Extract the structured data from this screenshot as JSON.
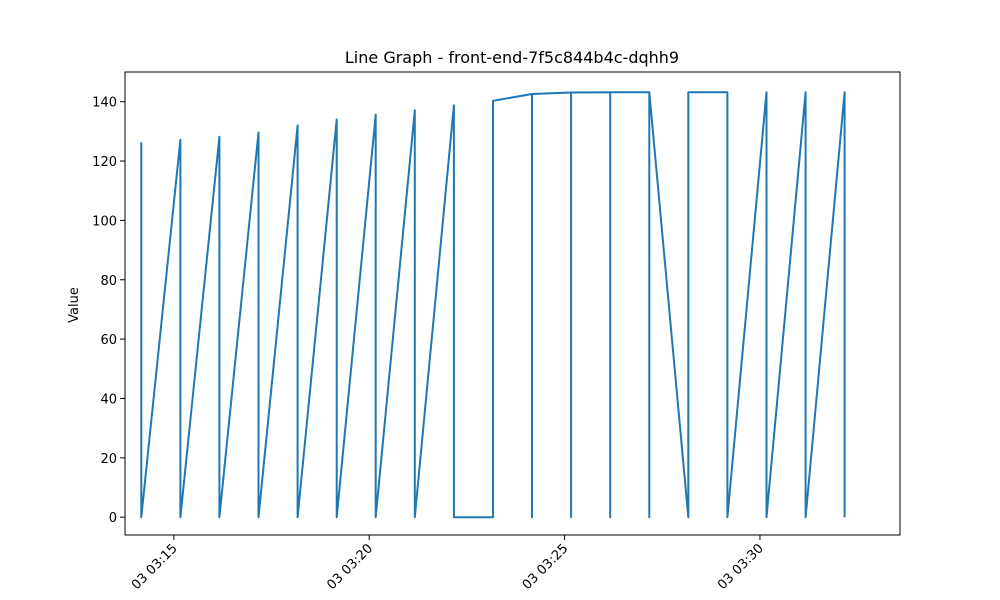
{
  "chart_data": {
    "type": "line",
    "title": "Line Graph - front-end-7f5c844b4c-dqhh9",
    "xlabel": "",
    "ylabel": "Value",
    "ylim": [
      -6,
      150
    ],
    "yticks": [
      0,
      20,
      40,
      60,
      80,
      100,
      120,
      140
    ],
    "xlim": [
      "03:13:45",
      "03:33:35"
    ],
    "xticks": [
      {
        "t": "03:15:00",
        "label": "03 03:15"
      },
      {
        "t": "03:20:00",
        "label": "03 03:20"
      },
      {
        "t": "03:25:00",
        "label": "03 03:25"
      },
      {
        "t": "03:30:00",
        "label": "03 03:30"
      }
    ],
    "grid": false,
    "line_color": "#1f77b4",
    "series": [
      {
        "name": "",
        "points": [
          [
            "03:14:10",
            126.3
          ],
          [
            "03:14:10",
            0
          ],
          [
            "03:15:10",
            127.2
          ],
          [
            "03:15:10",
            0
          ],
          [
            "03:16:10",
            128.2
          ],
          [
            "03:16:10",
            0
          ],
          [
            "03:17:10",
            129.6
          ],
          [
            "03:17:10",
            0
          ],
          [
            "03:18:10",
            132.0
          ],
          [
            "03:18:10",
            0
          ],
          [
            "03:19:10",
            134.0
          ],
          [
            "03:19:10",
            0
          ],
          [
            "03:20:10",
            135.6
          ],
          [
            "03:20:10",
            0
          ],
          [
            "03:21:10",
            137.1
          ],
          [
            "03:21:10",
            0
          ],
          [
            "03:22:10",
            138.8
          ],
          [
            "03:22:10",
            0
          ],
          [
            "03:23:10",
            0
          ],
          [
            "03:23:10",
            140.3
          ],
          [
            "03:24:10",
            142.6
          ],
          [
            "03:24:10",
            0
          ],
          [
            "03:24:10",
            142.6
          ],
          [
            "03:25:10",
            143.1
          ],
          [
            "03:25:10",
            0
          ],
          [
            "03:25:10",
            143.1
          ],
          [
            "03:26:10",
            143.2
          ],
          [
            "03:26:10",
            0
          ],
          [
            "03:26:10",
            143.2
          ],
          [
            "03:27:10",
            143.2
          ],
          [
            "03:27:10",
            0
          ],
          [
            "03:27:10",
            143.2
          ],
          [
            "03:28:10",
            0
          ],
          [
            "03:28:10",
            143.2
          ],
          [
            "03:29:10",
            143.2
          ],
          [
            "03:29:10",
            0
          ],
          [
            "03:30:10",
            143.2
          ],
          [
            "03:30:10",
            0
          ],
          [
            "03:31:10",
            143.2
          ],
          [
            "03:31:10",
            0
          ],
          [
            "03:32:10",
            143.2
          ],
          [
            "03:32:10",
            0
          ]
        ]
      }
    ]
  }
}
